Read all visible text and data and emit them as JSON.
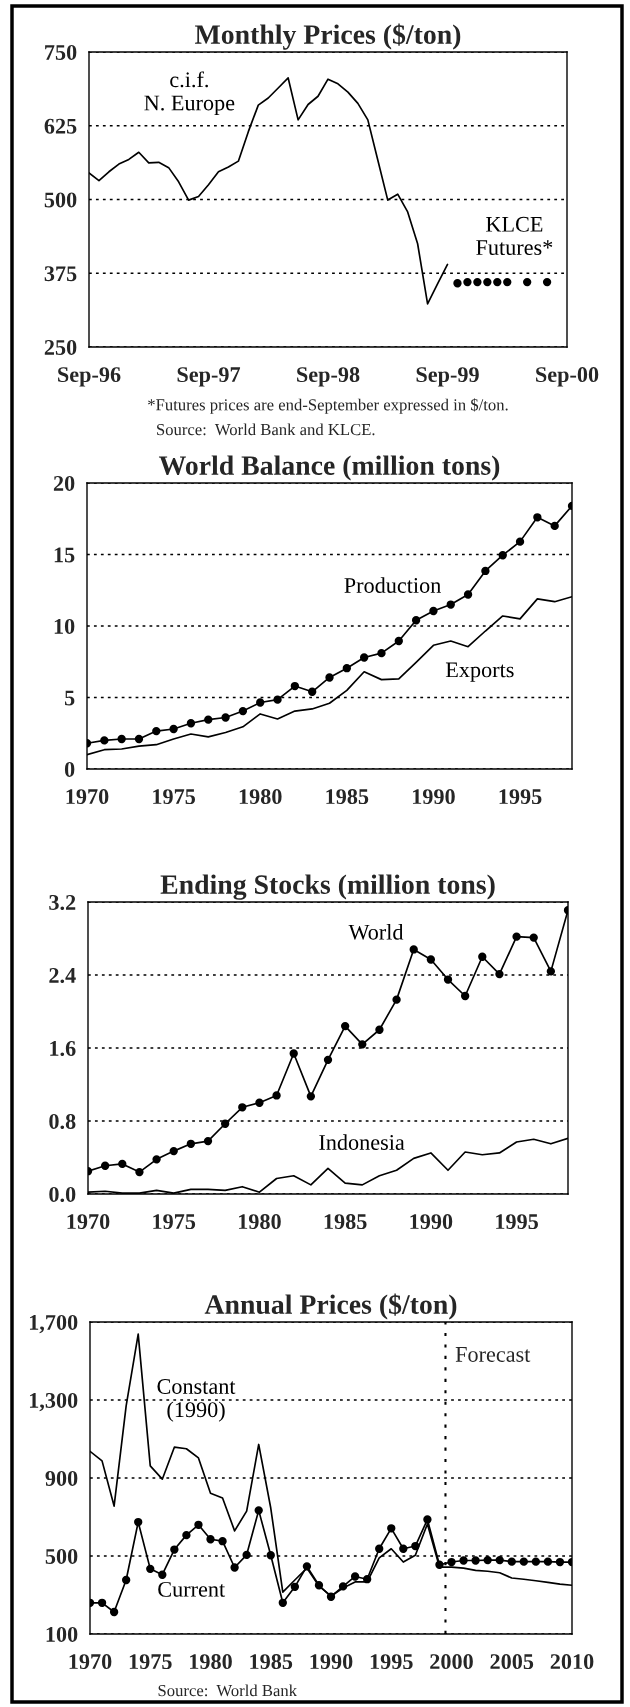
{
  "chart_data": [
    {
      "type": "line",
      "title": "Monthly Prices ($/ton)",
      "xlim": [
        "1996-09",
        "2000-09"
      ],
      "ylim": [
        250,
        750
      ],
      "xticks": [
        {
          "value": "1996-09",
          "label": "Sep-96"
        },
        {
          "value": "1997-09",
          "label": "Sep-97"
        },
        {
          "value": "1998-09",
          "label": "Sep-98"
        },
        {
          "value": "1999-09",
          "label": "Sep-99"
        },
        {
          "value": "2000-09",
          "label": "Sep-00"
        }
      ],
      "yticks": [
        250,
        375,
        500,
        625,
        750
      ],
      "grid": "y",
      "series": [
        {
          "name": "c.i.f.\nN. Europe",
          "type": "line",
          "marker": "none",
          "color": "#000000",
          "x": [
            "1996-09",
            "1996-10",
            "1996-11",
            "1996-12",
            "1997-01",
            "1997-02",
            "1997-03",
            "1997-04",
            "1997-05",
            "1997-06",
            "1997-07",
            "1997-08",
            "1997-09",
            "1997-10",
            "1997-11",
            "1997-12",
            "1998-01",
            "1998-02",
            "1998-03",
            "1998-04",
            "1998-05",
            "1998-06",
            "1998-07",
            "1998-08",
            "1998-09",
            "1998-10",
            "1998-11",
            "1998-12",
            "1999-01",
            "1999-02",
            "1999-03",
            "1999-04",
            "1999-05",
            "1999-06",
            "1999-07",
            "1999-08",
            "1999-09"
          ],
          "values": [
            545,
            532,
            547,
            560,
            568,
            580,
            562,
            563,
            554,
            530,
            499,
            505,
            525,
            547,
            555,
            565,
            615,
            660,
            672,
            689,
            706,
            635,
            661,
            675,
            704,
            696,
            682,
            663,
            635,
            567,
            499,
            509,
            479,
            425,
            323,
            357,
            390
          ]
        },
        {
          "name": "KLCE\nFutures*",
          "type": "scatter",
          "marker": "circle",
          "color": "#000000",
          "x": [
            "1999-10",
            "1999-11",
            "1999-12",
            "2000-01",
            "2000-02",
            "2000-03",
            "2000-05",
            "2000-07"
          ],
          "values": [
            358,
            360,
            360,
            360,
            360,
            360,
            360,
            360
          ]
        }
      ],
      "annotations": [
        "*Futures prices are end-September expressed in $/ton.",
        "Source:  World Bank and KLCE."
      ]
    },
    {
      "type": "line",
      "title": "World Balance (million tons)",
      "xlim": [
        1970,
        1998
      ],
      "ylim": [
        0,
        20
      ],
      "xticks": [
        1970,
        1975,
        1980,
        1985,
        1990,
        1995
      ],
      "yticks": [
        0,
        5,
        10,
        15,
        20
      ],
      "grid": "y",
      "x": [
        1970,
        1971,
        1972,
        1973,
        1974,
        1975,
        1976,
        1977,
        1978,
        1979,
        1980,
        1981,
        1982,
        1983,
        1984,
        1985,
        1986,
        1987,
        1988,
        1989,
        1990,
        1991,
        1992,
        1993,
        1994,
        1995,
        1996,
        1997,
        1998
      ],
      "series": [
        {
          "name": "Production",
          "marker": "circle",
          "color": "#000000",
          "values": [
            1.8,
            2.0,
            2.1,
            2.1,
            2.65,
            2.8,
            3.2,
            3.45,
            3.6,
            4.05,
            4.65,
            4.85,
            5.8,
            5.4,
            6.4,
            7.05,
            7.8,
            8.1,
            8.95,
            10.4,
            11.05,
            11.5,
            12.2,
            13.85,
            14.95,
            15.9,
            17.6,
            17.0,
            18.4
          ]
        },
        {
          "name": "Exports",
          "marker": "none",
          "color": "#000000",
          "values": [
            1.0,
            1.35,
            1.4,
            1.6,
            1.7,
            2.1,
            2.45,
            2.25,
            2.55,
            2.95,
            3.85,
            3.5,
            4.05,
            4.2,
            4.6,
            5.5,
            6.8,
            6.25,
            6.3,
            7.45,
            8.65,
            8.95,
            8.55,
            9.65,
            10.7,
            10.5,
            11.9,
            11.7,
            12.05
          ]
        }
      ]
    },
    {
      "type": "line",
      "title": "Ending Stocks (million tons)",
      "xlim": [
        1970,
        1998
      ],
      "ylim": [
        0,
        3.2
      ],
      "xticks": [
        1970,
        1975,
        1980,
        1985,
        1990,
        1995
      ],
      "yticks": [
        {
          "value": 0,
          "label": "0.0"
        },
        0.8,
        1.6,
        2.4,
        3.2
      ],
      "grid": "y",
      "x": [
        1970,
        1971,
        1972,
        1973,
        1974,
        1975,
        1976,
        1977,
        1978,
        1979,
        1980,
        1981,
        1982,
        1983,
        1984,
        1985,
        1986,
        1987,
        1988,
        1989,
        1990,
        1991,
        1992,
        1993,
        1994,
        1995,
        1996,
        1997,
        1998
      ],
      "series": [
        {
          "name": "World",
          "marker": "circle",
          "color": "#000000",
          "values": [
            0.25,
            0.31,
            0.33,
            0.24,
            0.38,
            0.47,
            0.55,
            0.58,
            0.77,
            0.95,
            1.0,
            1.08,
            1.54,
            1.07,
            1.47,
            1.84,
            1.64,
            1.8,
            2.13,
            2.68,
            2.57,
            2.35,
            2.17,
            2.6,
            2.41,
            2.82,
            2.81,
            2.44,
            3.11
          ]
        },
        {
          "name": "Indonesia",
          "marker": "none",
          "color": "#000000",
          "values": [
            0.02,
            0.03,
            0.01,
            0.01,
            0.04,
            0.01,
            0.05,
            0.05,
            0.04,
            0.08,
            0.02,
            0.17,
            0.2,
            0.1,
            0.28,
            0.12,
            0.1,
            0.2,
            0.26,
            0.39,
            0.45,
            0.26,
            0.46,
            0.43,
            0.45,
            0.57,
            0.6,
            0.55,
            0.61
          ]
        }
      ]
    },
    {
      "type": "line",
      "title": "Annual Prices ($/ton)",
      "xlim": [
        1970,
        2010
      ],
      "ylim": [
        100,
        1700
      ],
      "xticks": [
        1970,
        1975,
        1980,
        1985,
        1990,
        1995,
        2000,
        2005,
        2010
      ],
      "yticks": [
        100,
        500,
        900,
        {
          "value": 1300,
          "label": "1,300"
        },
        {
          "value": 1700,
          "label": "1,700"
        }
      ],
      "grid": "y",
      "x": [
        1970,
        1971,
        1972,
        1973,
        1974,
        1975,
        1976,
        1977,
        1978,
        1979,
        1980,
        1981,
        1982,
        1983,
        1984,
        1985,
        1986,
        1987,
        1988,
        1989,
        1990,
        1991,
        1992,
        1993,
        1994,
        1995,
        1996,
        1997,
        1998,
        1999,
        2000,
        2001,
        2002,
        2003,
        2004,
        2005,
        2006,
        2007,
        2008,
        2009,
        2010
      ],
      "series": [
        {
          "name": "Constant\n(1990)",
          "marker": "none",
          "color": "#000000",
          "values": [
            1037,
            988,
            756,
            1270,
            1638,
            962,
            894,
            1058,
            1050,
            1003,
            822,
            797,
            629,
            730,
            1072,
            746,
            315,
            377,
            438,
            346,
            295,
            336,
            367,
            367,
            490,
            537,
            469,
            504,
            664,
            443,
            443,
            438,
            426,
            422,
            414,
            387,
            381,
            373,
            365,
            356,
            350
          ]
        },
        {
          "name": "Current",
          "marker": "circle",
          "color": "#000000",
          "values": [
            260,
            260,
            213,
            377,
            674,
            434,
            404,
            533,
            607,
            660,
            586,
            576,
            441,
            506,
            734,
            504,
            260,
            342,
            447,
            350,
            291,
            344,
            395,
            381,
            537,
            642,
            537,
            551,
            687,
            455,
            469,
            477,
            477,
            479,
            479,
            471,
            471,
            471,
            471,
            469,
            469
          ]
        }
      ],
      "ref_lines": [
        {
          "axis": "x",
          "value": 1999.5,
          "label": "Forecast",
          "line_style": "dotted",
          "color": "#000000"
        }
      ],
      "annotations": [
        "Source:  World Bank"
      ]
    }
  ]
}
